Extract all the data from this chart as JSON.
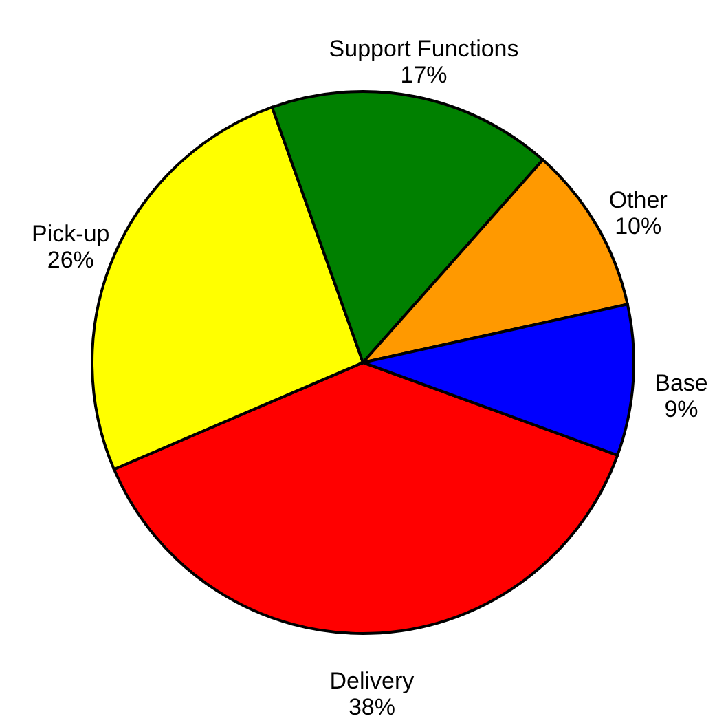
{
  "chart_data": {
    "type": "pie",
    "categories": [
      "Delivery",
      "Pick-up",
      "Support Functions",
      "Other",
      "Base"
    ],
    "values": [
      38,
      26,
      17,
      10,
      9
    ],
    "value_labels": [
      "38%",
      "26%",
      "17%",
      "10%",
      "9%"
    ],
    "colors": [
      "#ff0000",
      "#ffff00",
      "#008000",
      "#ff9900",
      "#0000ff"
    ]
  }
}
